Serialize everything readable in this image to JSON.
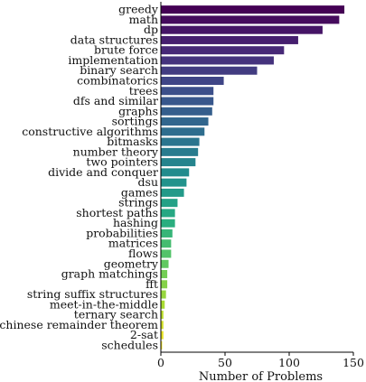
{
  "chart_data": {
    "type": "bar",
    "orientation": "horizontal",
    "categories": [
      "greedy",
      "math",
      "dp",
      "data structures",
      "brute force",
      "implementation",
      "binary search",
      "combinatorics",
      "trees",
      "dfs and similar",
      "graphs",
      "sortings",
      "constructive algorithms",
      "bitmasks",
      "number theory",
      "two pointers",
      "divide and conquer",
      "dsu",
      "games",
      "strings",
      "shortest paths",
      "hashing",
      "probabilities",
      "matrices",
      "flows",
      "geometry",
      "graph matchings",
      "fft",
      "string suffix structures",
      "meet-in-the-middle",
      "ternary search",
      "chinese remainder theorem",
      "2-sat",
      "schedules"
    ],
    "values": [
      143,
      139,
      126,
      107,
      96,
      88,
      75,
      49,
      41,
      41,
      40,
      37,
      34,
      30,
      29,
      27,
      22,
      20,
      18,
      13,
      11,
      11,
      9,
      8,
      8,
      6,
      5,
      5,
      4,
      3,
      2,
      2,
      2,
      1
    ],
    "title": "",
    "xlabel": "Number of Problems",
    "ylabel": "",
    "xlim": [
      0,
      150
    ],
    "xticks": [
      0,
      50,
      100,
      150
    ],
    "colormap": "viridis",
    "grid": false
  }
}
